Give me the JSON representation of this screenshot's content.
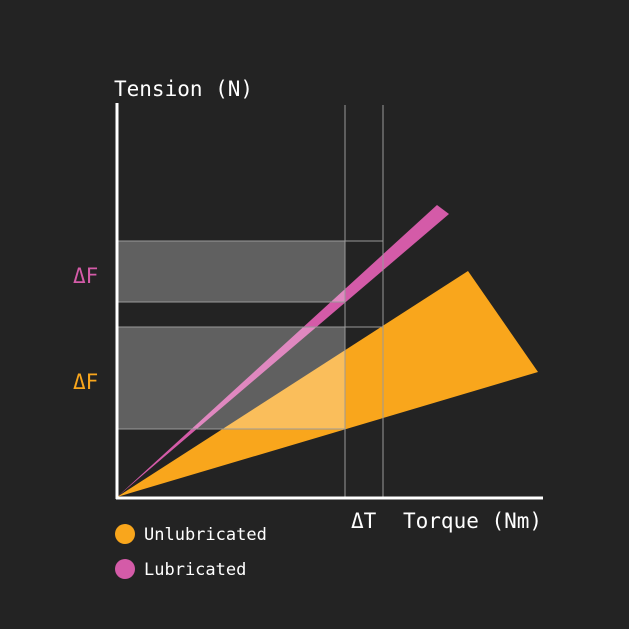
{
  "axes": {
    "y_label": "Tension (N)",
    "x_label": "Torque (Nm)"
  },
  "labels": {
    "delta_f_lubricated": "ΔF",
    "delta_f_unlubricated": "ΔF",
    "delta_t": "ΔT"
  },
  "legend": [
    {
      "name": "Unlubricated",
      "color": "#f9a61c"
    },
    {
      "name": "Lubricated",
      "color": "#d45ba8"
    }
  ]
}
